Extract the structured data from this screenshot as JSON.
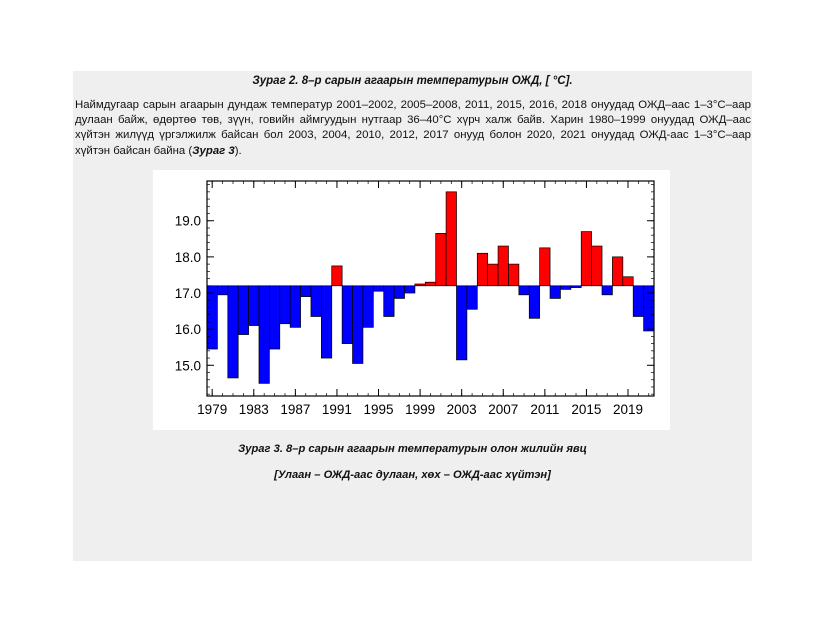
{
  "document": {
    "figure2_caption": "Зураг 2. 8–р сарын агаарын температурын ОЖД, [ °C].",
    "paragraph_text": "Наймдугаар сарын агаарын дундаж температур 2001–2002, 2005–2008, 2011, 2015, 2016, 2018 онуудад ОЖД–аас 1–3°C–аар дулаан байж, өдөртөө төв, зүүн, говийн аймгуудын нутгаар 36–40°C хүрч халж байв. Харин 1980–1999 онуудад ОЖД–аас хүйтэн жилүүд үргэлжилж байсан бол 2003, 2004, 2010, 2012, 2017 онууд болон 2020, 2021 онуудад ОЖД-аас 1–3°C–аар хүйтэн байсан байна (",
    "paragraph_ref": "Зураг 3",
    "paragraph_end": ").",
    "figure3_caption_line1": "Зураг 3. 8–р сарын агаарын температурын олон жилийн явц",
    "figure3_caption_line2": "[Улаан – ОЖД-аас дулаан, хөх – ОЖД-аас хүйтэн]"
  },
  "chart_data": {
    "type": "bar",
    "baseline": 17.2,
    "x": [
      1979,
      1980,
      1981,
      1982,
      1983,
      1984,
      1985,
      1986,
      1987,
      1988,
      1989,
      1990,
      1991,
      1992,
      1993,
      1994,
      1995,
      1996,
      1997,
      1998,
      1999,
      2000,
      2001,
      2002,
      2003,
      2004,
      2005,
      2006,
      2007,
      2008,
      2009,
      2010,
      2011,
      2012,
      2013,
      2014,
      2015,
      2016,
      2017,
      2018,
      2019,
      2020,
      2021
    ],
    "values": [
      15.45,
      16.95,
      14.65,
      15.85,
      16.1,
      14.5,
      15.45,
      16.15,
      16.05,
      16.9,
      16.35,
      15.2,
      17.75,
      15.6,
      15.05,
      16.05,
      17.05,
      16.35,
      16.85,
      17.0,
      17.25,
      17.3,
      18.65,
      19.8,
      15.15,
      16.55,
      18.1,
      17.8,
      18.3,
      17.8,
      16.95,
      16.3,
      18.25,
      16.85,
      17.1,
      17.15,
      18.7,
      18.3,
      16.95,
      18.0,
      17.45,
      16.35,
      15.95
    ],
    "warm_color": "#ff0000",
    "cold_color": "#0000ff",
    "ylim": [
      14.15,
      20.1
    ],
    "yticks": [
      15.0,
      16.0,
      17.0,
      18.0,
      19.0
    ],
    "ytick_labels": [
      "15.0",
      "16.0",
      "17.0",
      "18.0",
      "19.0"
    ],
    "xticks": [
      1979,
      1983,
      1987,
      1991,
      1995,
      1999,
      2003,
      2007,
      2011,
      2015,
      2019
    ],
    "xtick_labels": [
      "1979",
      "1983",
      "1987",
      "1991",
      "1995",
      "1999",
      "2003",
      "2007",
      "2011",
      "2015",
      "2019"
    ],
    "title": "",
    "xlabel": "",
    "ylabel": ""
  }
}
